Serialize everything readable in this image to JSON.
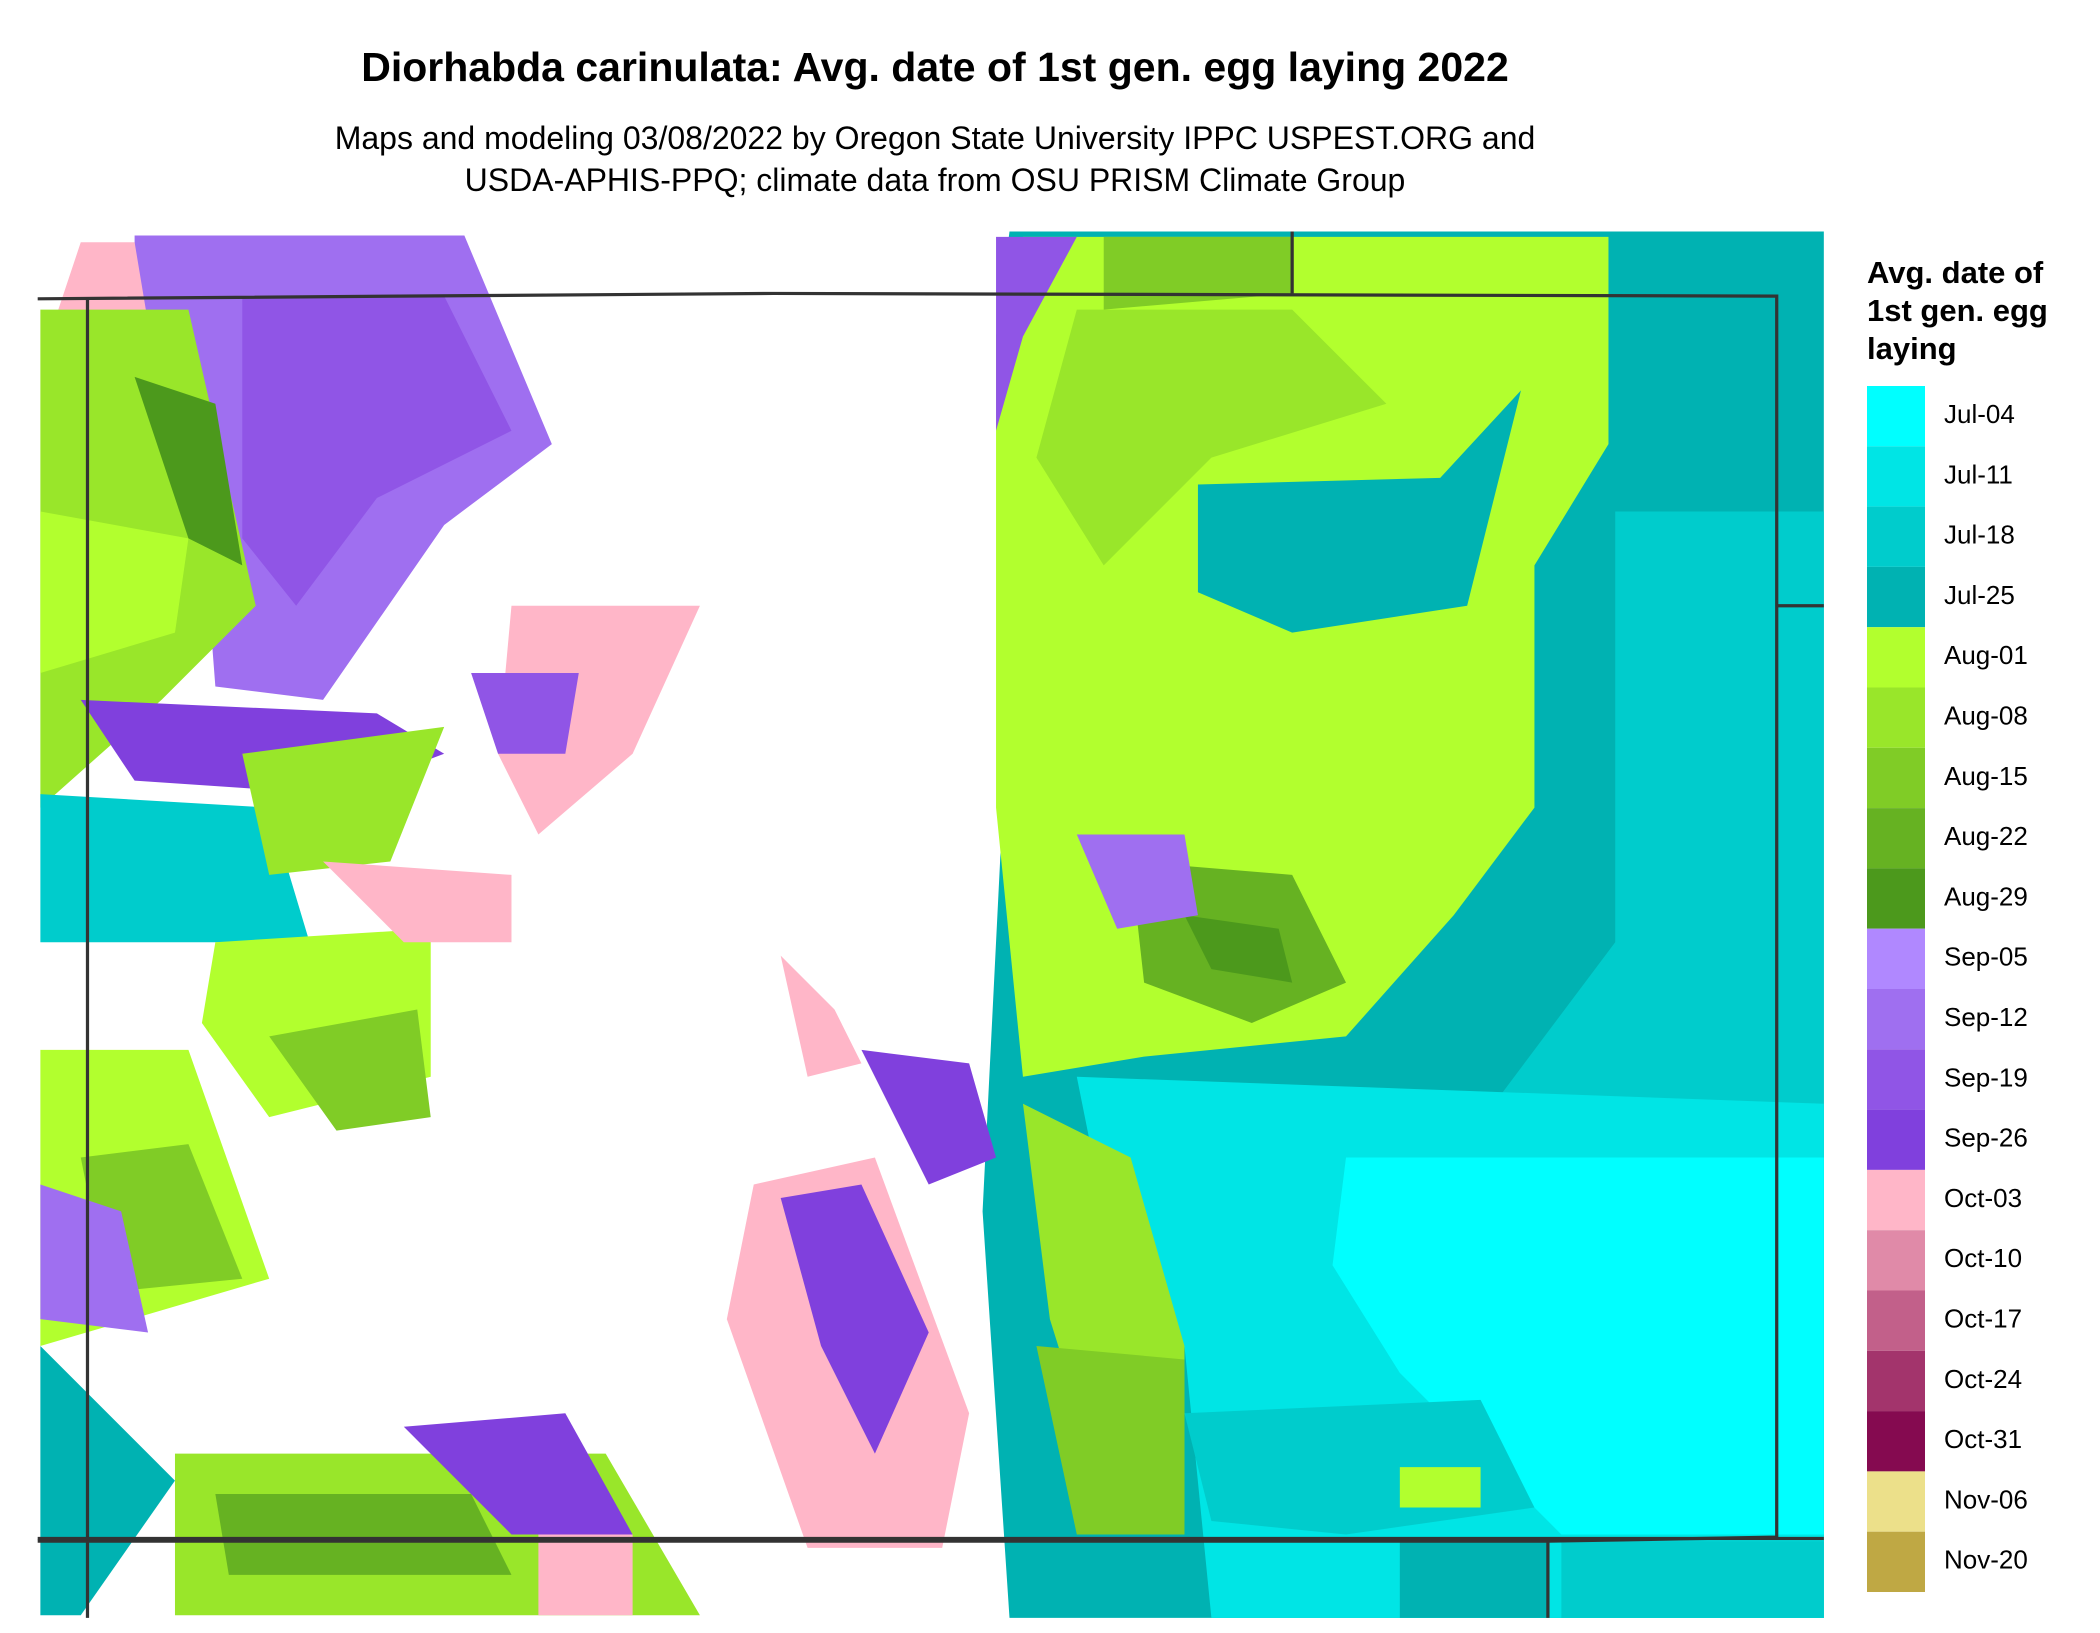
{
  "header": {
    "title": "Diorhabda carinulata: Avg. date of 1st gen. egg laying 2022",
    "subtitle_lines": [
      "Maps and modeling 03/08/2022 by Oregon State University IPPC USPEST.ORG and",
      "USDA-APHIS-PPQ; climate data from OSU PRISM Climate Group"
    ]
  },
  "legend": {
    "title": "Avg. date of 1st gen. egg laying",
    "items": [
      {
        "label": "Jul-04",
        "color": "#00ffff"
      },
      {
        "label": "Jul-11",
        "color": "#00e5e5"
      },
      {
        "label": "Jul-18",
        "color": "#00cccc"
      },
      {
        "label": "Jul-25",
        "color": "#00b2b2"
      },
      {
        "label": "Aug-01",
        "color": "#b2ff2e"
      },
      {
        "label": "Aug-08",
        "color": "#99e62a"
      },
      {
        "label": "Aug-15",
        "color": "#80cc26"
      },
      {
        "label": "Aug-22",
        "color": "#66b222"
      },
      {
        "label": "Aug-29",
        "color": "#4c991c"
      },
      {
        "label": "Sep-05",
        "color": "#b088ff"
      },
      {
        "label": "Sep-12",
        "color": "#9f6ff0"
      },
      {
        "label": "Sep-19",
        "color": "#9055e6"
      },
      {
        "label": "Sep-26",
        "color": "#8040dd"
      },
      {
        "label": "Oct-03",
        "color": "#ffb6c8"
      },
      {
        "label": "Oct-10",
        "color": "#e08aa8"
      },
      {
        "label": "Oct-17",
        "color": "#c2608a"
      },
      {
        "label": "Oct-24",
        "color": "#a3346c"
      },
      {
        "label": "Oct-31",
        "color": "#850a50"
      },
      {
        "label": "Nov-06",
        "color": "#ece08a"
      },
      {
        "label": "Nov-20",
        "color": "#bfa844"
      }
    ]
  }
}
